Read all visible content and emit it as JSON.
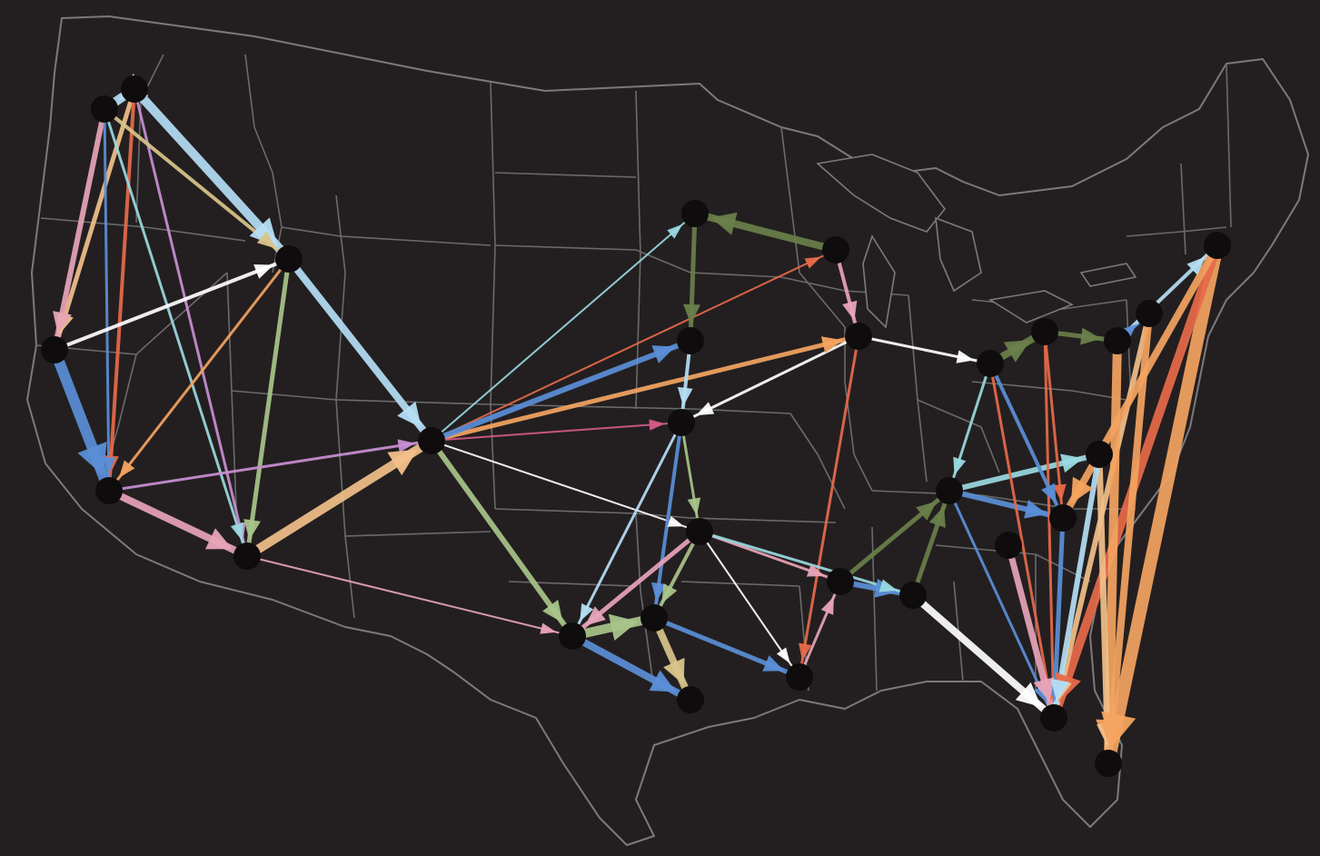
{
  "map": {
    "region": "contiguous-united-states",
    "basemap": "state-borders",
    "background_color": "#231f20",
    "border_color": "#6a6a6a",
    "edge_color_palette": [
      "#b5def5",
      "#5b8fd8",
      "#e8a4b8",
      "#f2c08a",
      "#d9c48a",
      "#e86a4a",
      "#c98fd3",
      "#6a7f4a",
      "#a9c48a",
      "#f4a460",
      "#ffffff",
      "#9ad9e0",
      "#d75a8a"
    ]
  }
}
